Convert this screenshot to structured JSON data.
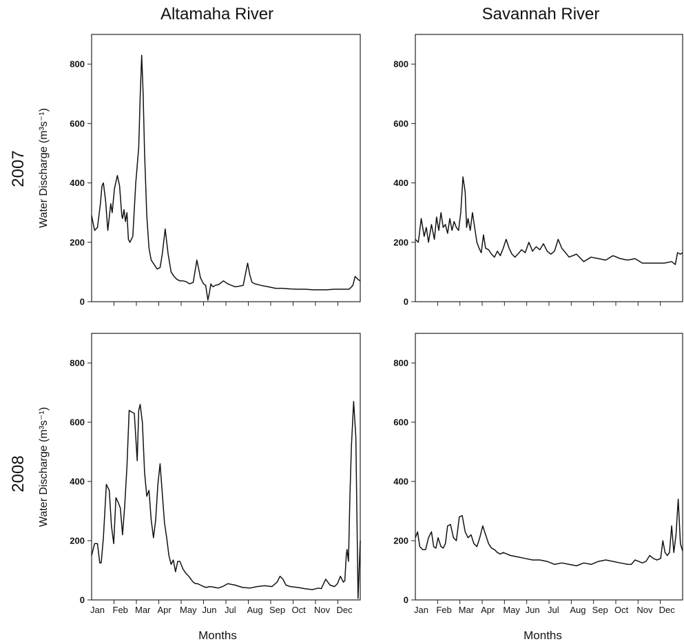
{
  "figure": {
    "column_titles": [
      "Altamaha River",
      "Savannah River"
    ],
    "row_labels": [
      "2007",
      "2008"
    ]
  },
  "chart_data": [
    {
      "type": "line",
      "river": "Altamaha River",
      "year": "2007",
      "ylabel": "Water Discharge (m³s⁻¹)",
      "xlabel": "",
      "ylim": [
        0,
        900
      ],
      "yticks": [
        0,
        200,
        400,
        600,
        800
      ],
      "categories": [
        "Jan",
        "Feb",
        "Mar",
        "Apr",
        "May",
        "Jun",
        "Jul",
        "Aug",
        "Sep",
        "Oct",
        "Nov",
        "Dec"
      ],
      "xlim": [
        0,
        365
      ],
      "grid": false,
      "series": [
        {
          "x": [
            0,
            4,
            8,
            12,
            14,
            16,
            19,
            22,
            26,
            28,
            31,
            35,
            38,
            41,
            42,
            44,
            46,
            48,
            50,
            52,
            56,
            60,
            64,
            66,
            68,
            70,
            72,
            75,
            78,
            81,
            85,
            89,
            93,
            96,
            100,
            104,
            108,
            112,
            116,
            120,
            124,
            128,
            133,
            138,
            143,
            148,
            152,
            155,
            158,
            160,
            162,
            163,
            165,
            168,
            173,
            179,
            185,
            190,
            195,
            200,
            206,
            212,
            215,
            218,
            222,
            230,
            240,
            250,
            260,
            270,
            280,
            290,
            300,
            310,
            320,
            330,
            340,
            350,
            355,
            358,
            362,
            365
          ],
          "y": [
            290,
            240,
            250,
            330,
            390,
            400,
            340,
            240,
            330,
            300,
            380,
            425,
            390,
            290,
            280,
            310,
            270,
            300,
            210,
            200,
            220,
            400,
            520,
            690,
            830,
            700,
            500,
            290,
            180,
            140,
            125,
            110,
            115,
            160,
            245,
            160,
            100,
            85,
            75,
            70,
            70,
            68,
            60,
            65,
            140,
            80,
            60,
            55,
            5,
            30,
            60,
            55,
            50,
            55,
            58,
            70,
            60,
            55,
            50,
            52,
            55,
            130,
            90,
            65,
            60,
            55,
            50,
            45,
            45,
            43,
            42,
            42,
            40,
            40,
            40,
            42,
            42,
            42,
            55,
            85,
            75,
            70
          ]
        }
      ]
    },
    {
      "type": "line",
      "river": "Savannah River",
      "year": "2007",
      "ylabel": "",
      "xlabel": "",
      "ylim": [
        0,
        900
      ],
      "yticks": [
        0,
        200,
        400,
        600,
        800
      ],
      "categories": [
        "Jan",
        "Feb",
        "Mar",
        "Apr",
        "May",
        "Jun",
        "Jul",
        "Aug",
        "Sep",
        "Oct",
        "Nov",
        "Dec"
      ],
      "xlim": [
        0,
        365
      ],
      "grid": false,
      "series": [
        {
          "x": [
            0,
            4,
            8,
            12,
            15,
            18,
            22,
            26,
            29,
            32,
            35,
            38,
            41,
            44,
            47,
            50,
            53,
            56,
            59,
            62,
            65,
            68,
            70,
            72,
            75,
            78,
            81,
            84,
            87,
            90,
            93,
            96,
            100,
            104,
            108,
            112,
            116,
            120,
            124,
            128,
            132,
            136,
            140,
            145,
            150,
            155,
            160,
            165,
            170,
            175,
            180,
            185,
            190,
            195,
            200,
            210,
            220,
            230,
            240,
            250,
            260,
            270,
            280,
            290,
            300,
            310,
            320,
            330,
            340,
            350,
            355,
            358,
            362,
            365
          ],
          "y": [
            210,
            200,
            280,
            220,
            250,
            200,
            260,
            210,
            285,
            240,
            300,
            250,
            260,
            230,
            280,
            240,
            270,
            250,
            240,
            300,
            420,
            370,
            250,
            280,
            240,
            300,
            250,
            200,
            180,
            165,
            225,
            180,
            175,
            160,
            150,
            170,
            155,
            180,
            210,
            180,
            160,
            150,
            160,
            175,
            165,
            200,
            170,
            185,
            175,
            195,
            170,
            160,
            170,
            210,
            180,
            150,
            160,
            135,
            150,
            145,
            140,
            155,
            145,
            140,
            145,
            130,
            130,
            130,
            130,
            135,
            125,
            165,
            160,
            165
          ]
        }
      ]
    },
    {
      "type": "line",
      "river": "Altamaha River",
      "year": "2008",
      "ylabel": "Water Discharge (m³s⁻¹)",
      "xlabel": "Months",
      "ylim": [
        0,
        900
      ],
      "yticks": [
        0,
        200,
        400,
        600,
        800
      ],
      "categories": [
        "Jan",
        "Feb",
        "Mar",
        "Apr",
        "May",
        "Jun",
        "Jul",
        "Aug",
        "Sep",
        "Oct",
        "Nov",
        "Dec"
      ],
      "xlim": [
        0,
        365
      ],
      "grid": false,
      "series": [
        {
          "x": [
            0,
            4,
            8,
            11,
            13,
            16,
            20,
            24,
            27,
            30,
            33,
            36,
            39,
            42,
            45,
            48,
            51,
            54,
            58,
            62,
            64,
            66,
            69,
            72,
            75,
            78,
            81,
            84,
            87,
            90,
            93,
            96,
            99,
            102,
            105,
            108,
            111,
            114,
            117,
            120,
            124,
            128,
            132,
            135,
            138,
            141,
            144,
            148,
            152,
            156,
            160,
            164,
            168,
            172,
            178,
            185,
            195,
            205,
            215,
            225,
            235,
            245,
            252,
            256,
            260,
            264,
            270,
            280,
            290,
            300,
            305,
            308,
            312,
            318,
            324,
            330,
            334,
            338,
            342,
            344,
            346,
            347,
            349,
            351,
            353,
            356,
            359,
            362,
            365
          ],
          "y": [
            150,
            190,
            190,
            125,
            125,
            210,
            390,
            370,
            250,
            190,
            345,
            330,
            310,
            220,
            320,
            450,
            640,
            635,
            630,
            470,
            640,
            660,
            600,
            430,
            350,
            370,
            270,
            210,
            270,
            390,
            460,
            360,
            260,
            210,
            150,
            120,
            135,
            95,
            130,
            130,
            105,
            90,
            80,
            70,
            60,
            55,
            55,
            50,
            45,
            42,
            45,
            44,
            42,
            40,
            45,
            55,
            50,
            42,
            40,
            45,
            48,
            45,
            60,
            80,
            70,
            50,
            45,
            42,
            38,
            35,
            38,
            40,
            38,
            70,
            50,
            45,
            55,
            80,
            60,
            65,
            150,
            170,
            130,
            350,
            520,
            670,
            550,
            5,
            200
          ]
        }
      ]
    },
    {
      "type": "line",
      "river": "Savannah River",
      "year": "2008",
      "ylabel": "",
      "xlabel": "Months",
      "ylim": [
        0,
        900
      ],
      "yticks": [
        0,
        200,
        400,
        600,
        800
      ],
      "categories": [
        "Jan",
        "Feb",
        "Mar",
        "Apr",
        "May",
        "Jun",
        "Jul",
        "Aug",
        "Sep",
        "Oct",
        "Nov",
        "Dec"
      ],
      "xlim": [
        0,
        365
      ],
      "grid": false,
      "series": [
        {
          "x": [
            0,
            3,
            6,
            10,
            14,
            18,
            22,
            25,
            28,
            31,
            35,
            38,
            41,
            44,
            48,
            52,
            56,
            60,
            64,
            68,
            72,
            76,
            80,
            84,
            88,
            92,
            96,
            100,
            104,
            108,
            112,
            116,
            120,
            130,
            140,
            150,
            160,
            170,
            180,
            190,
            200,
            210,
            220,
            230,
            240,
            250,
            260,
            270,
            280,
            290,
            295,
            300,
            305,
            310,
            315,
            320,
            325,
            330,
            335,
            338,
            341,
            344,
            347,
            350,
            353,
            356,
            359,
            362,
            365
          ],
          "y": [
            210,
            230,
            180,
            170,
            170,
            210,
            230,
            180,
            175,
            210,
            180,
            175,
            190,
            250,
            255,
            210,
            200,
            280,
            285,
            230,
            210,
            220,
            190,
            180,
            210,
            250,
            220,
            190,
            175,
            170,
            160,
            155,
            160,
            150,
            145,
            140,
            135,
            135,
            130,
            120,
            125,
            120,
            115,
            125,
            120,
            130,
            135,
            130,
            125,
            120,
            120,
            135,
            130,
            125,
            130,
            150,
            140,
            135,
            140,
            200,
            160,
            150,
            160,
            250,
            160,
            220,
            340,
            190,
            165
          ]
        }
      ]
    }
  ]
}
